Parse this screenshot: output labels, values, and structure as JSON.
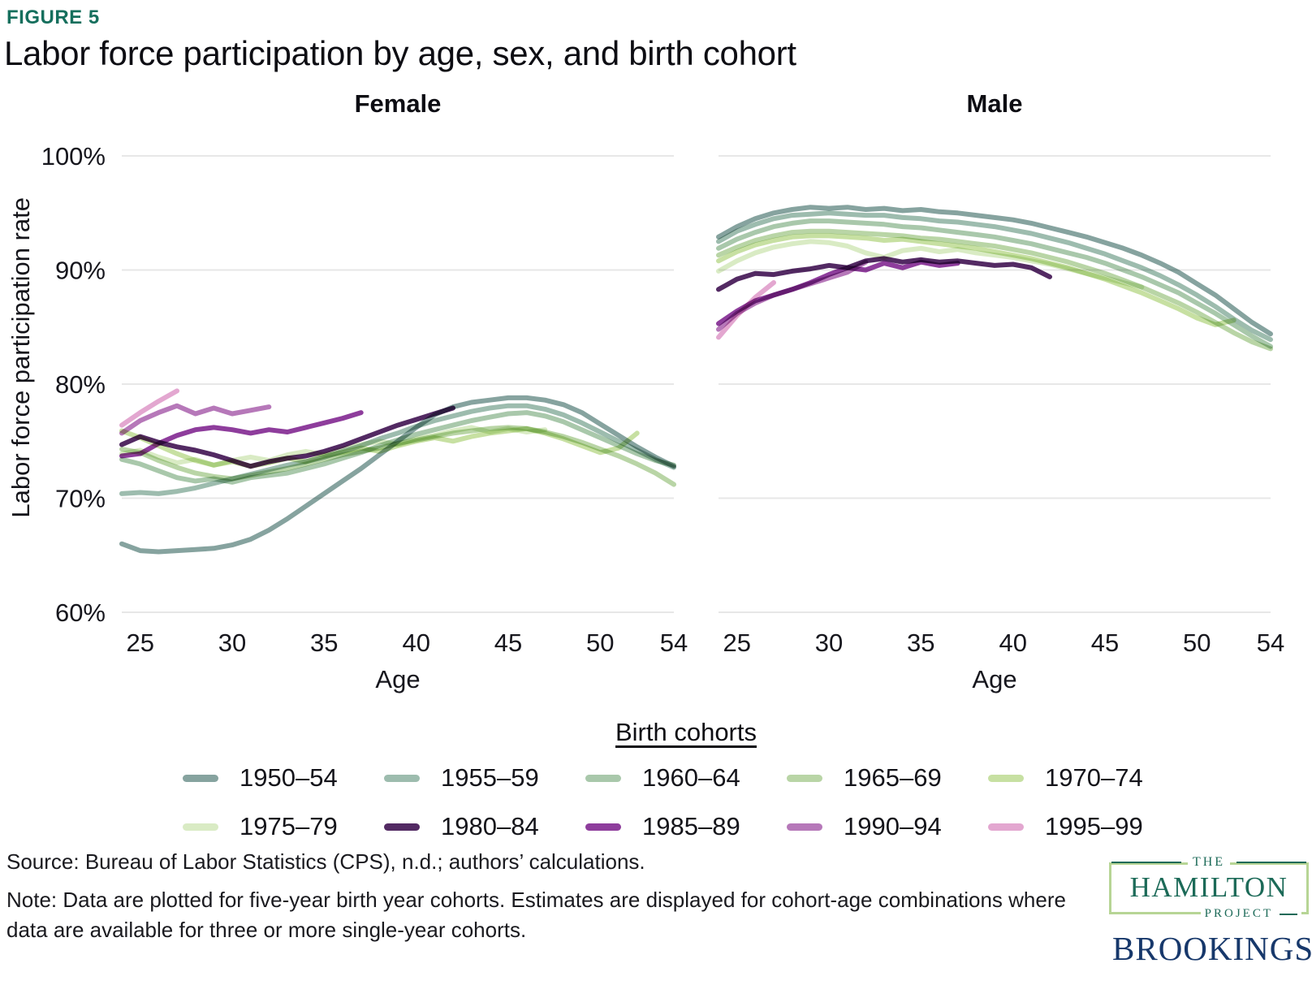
{
  "figure_label": "FIGURE 5",
  "title": "Labor force participation by age, sex, and birth cohort",
  "source": "Source: Bureau of Labor Statistics (CPS), n.d.; authors’ calculations.",
  "note": "Note: Data are plotted for five-year birth year cohorts. Estimates are displayed for cohort-age combinations where data are available for three or more single-year cohorts.",
  "legend": {
    "title": "Birth cohorts",
    "items": [
      {
        "label": "1950–54",
        "color": "#86a39f"
      },
      {
        "label": "1955–59",
        "color": "#9dbcae"
      },
      {
        "label": "1960–64",
        "color": "#a9c8ab"
      },
      {
        "label": "1965–69",
        "color": "#b9d5a6"
      },
      {
        "label": "1970–74",
        "color": "#c7e0a2"
      },
      {
        "label": "1975–79",
        "color": "#d9ebc4"
      },
      {
        "label": "1980–84",
        "color": "#532a63"
      },
      {
        "label": "1985–89",
        "color": "#8e3d9c"
      },
      {
        "label": "1990–94",
        "color": "#b678b9"
      },
      {
        "label": "1995–99",
        "color": "#e3a7d0"
      }
    ]
  },
  "logos": {
    "hamilton_the": "THE",
    "hamilton_name": "HAMILTON",
    "hamilton_project": "PROJECT",
    "brookings": "BROOKINGS"
  },
  "chart_data": [
    {
      "type": "line",
      "title": "Female",
      "xlabel": "Age",
      "ylabel": "Labor force participation rate",
      "xlim": [
        23.5,
        54.5
      ],
      "ylim": [
        58,
        101
      ],
      "x_ticks": [
        25,
        30,
        35,
        40,
        45,
        50,
        54
      ],
      "y_ticks": [
        100,
        90,
        80,
        70,
        60
      ],
      "grid": "horizontal",
      "legend_position": "bottom",
      "series": [
        {
          "name": "1950–54",
          "age_start": 24,
          "values": [
            66.0,
            65.4,
            65.3,
            65.4,
            65.5,
            65.6,
            65.9,
            66.4,
            67.2,
            68.2,
            69.3,
            70.4,
            71.5,
            72.6,
            73.8,
            75.0,
            76.2,
            77.3,
            78.0,
            78.4,
            78.6,
            78.8,
            78.8,
            78.6,
            78.2,
            77.5,
            76.5,
            75.5,
            74.5,
            73.6,
            72.8
          ]
        },
        {
          "name": "1955–59",
          "age_start": 24,
          "values": [
            70.4,
            70.5,
            70.4,
            70.6,
            70.9,
            71.3,
            71.7,
            72.1,
            72.5,
            72.9,
            73.2,
            73.6,
            74.1,
            74.6,
            75.2,
            75.7,
            76.3,
            76.8,
            77.2,
            77.6,
            77.9,
            78.1,
            78.1,
            77.8,
            77.3,
            76.6,
            75.8,
            75.0,
            74.2,
            73.4,
            72.7
          ]
        },
        {
          "name": "1960–64",
          "age_start": 24,
          "values": [
            73.4,
            73.0,
            72.4,
            71.8,
            71.5,
            71.7,
            71.4,
            71.8,
            72.0,
            72.2,
            72.6,
            73.0,
            73.5,
            74.0,
            74.6,
            75.1,
            75.6,
            76.0,
            76.4,
            76.8,
            77.1,
            77.4,
            77.5,
            77.2,
            76.7,
            76.0,
            75.3,
            74.6,
            73.9,
            73.3,
            72.9
          ]
        },
        {
          "name": "1965–69",
          "age_start": 24,
          "values": [
            74.3,
            74.0,
            73.3,
            72.7,
            72.2,
            71.9,
            71.7,
            72.0,
            72.3,
            72.6,
            73.0,
            73.4,
            73.8,
            74.1,
            74.4,
            74.8,
            75.1,
            75.4,
            75.7,
            75.9,
            76.1,
            76.2,
            76.1,
            75.8,
            75.4,
            74.9,
            74.3,
            73.7,
            73.0,
            72.2,
            71.2
          ]
        },
        {
          "name": "1970–74",
          "age_start": 24,
          "values": [
            75.9,
            75.3,
            74.6,
            73.9,
            73.3,
            72.9,
            73.2,
            72.8,
            73.1,
            73.5,
            73.2,
            73.7,
            74.0,
            74.4,
            74.1,
            74.6,
            75.0,
            75.3,
            75.0,
            75.4,
            75.7,
            75.9,
            76.1,
            75.7,
            75.2,
            74.6,
            74.0,
            74.4,
            75.7
          ]
        },
        {
          "name": "1975–79",
          "age_start": 24,
          "values": [
            73.9,
            74.2,
            73.6,
            73.1,
            73.4,
            72.9,
            73.3,
            73.6,
            73.3,
            73.8,
            74.1,
            73.8,
            74.3,
            74.7,
            75.0,
            74.7,
            75.2,
            75.5,
            75.9,
            76.2,
            75.8,
            76.1,
            75.8,
            76.0
          ]
        },
        {
          "name": "1980–84",
          "age_start": 24,
          "values": [
            74.7,
            75.4,
            74.9,
            74.5,
            74.2,
            73.8,
            73.3,
            72.8,
            73.2,
            73.5,
            73.7,
            74.1,
            74.6,
            75.2,
            75.8,
            76.4,
            76.9,
            77.4,
            77.9
          ]
        },
        {
          "name": "1985–89",
          "age_start": 24,
          "values": [
            73.7,
            73.9,
            74.8,
            75.5,
            76.0,
            76.2,
            76.0,
            75.7,
            76.0,
            75.8,
            76.2,
            76.6,
            77.0,
            77.5
          ]
        },
        {
          "name": "1990–94",
          "age_start": 24,
          "values": [
            75.7,
            76.8,
            77.5,
            78.1,
            77.4,
            77.9,
            77.4,
            77.7,
            78.0
          ]
        },
        {
          "name": "1995–99",
          "age_start": 24,
          "values": [
            76.4,
            77.5,
            78.5,
            79.4
          ]
        }
      ]
    },
    {
      "type": "line",
      "title": "Male",
      "xlabel": "Age",
      "ylabel": "Labor force participation rate",
      "xlim": [
        23.5,
        54.5
      ],
      "ylim": [
        58,
        101
      ],
      "x_ticks": [
        25,
        30,
        35,
        40,
        45,
        50,
        54
      ],
      "y_ticks": [
        100,
        90,
        80,
        70,
        60
      ],
      "grid": "horizontal",
      "legend_position": "bottom",
      "series": [
        {
          "name": "1950–54",
          "age_start": 24,
          "values": [
            92.9,
            93.8,
            94.5,
            95.0,
            95.3,
            95.5,
            95.4,
            95.5,
            95.3,
            95.4,
            95.2,
            95.3,
            95.1,
            95.0,
            94.8,
            94.6,
            94.4,
            94.1,
            93.7,
            93.3,
            92.9,
            92.4,
            91.9,
            91.3,
            90.6,
            89.8,
            88.8,
            87.8,
            86.6,
            85.4,
            84.4
          ]
        },
        {
          "name": "1955–59",
          "age_start": 24,
          "values": [
            92.5,
            93.4,
            94.0,
            94.5,
            94.8,
            94.9,
            95.0,
            94.9,
            94.8,
            94.8,
            94.6,
            94.5,
            94.3,
            94.2,
            94.0,
            93.8,
            93.5,
            93.2,
            92.8,
            92.4,
            91.9,
            91.4,
            90.8,
            90.2,
            89.5,
            88.7,
            87.8,
            86.8,
            85.7,
            84.7,
            83.9
          ]
        },
        {
          "name": "1960–64",
          "age_start": 24,
          "values": [
            91.9,
            92.7,
            93.3,
            93.8,
            94.1,
            94.3,
            94.3,
            94.2,
            94.1,
            94.0,
            93.8,
            93.7,
            93.5,
            93.3,
            93.1,
            92.9,
            92.6,
            92.3,
            91.9,
            91.5,
            91.1,
            90.6,
            90.0,
            89.4,
            88.7,
            88.0,
            87.1,
            86.2,
            85.2,
            84.2,
            83.3
          ]
        },
        {
          "name": "1965–69",
          "age_start": 24,
          "values": [
            91.3,
            92.0,
            92.6,
            93.0,
            93.3,
            93.4,
            93.4,
            93.3,
            93.2,
            93.1,
            93.0,
            92.8,
            92.7,
            92.5,
            92.3,
            92.1,
            91.8,
            91.5,
            91.1,
            90.7,
            90.2,
            89.7,
            89.1,
            88.5,
            87.8,
            87.1,
            86.3,
            85.4,
            84.5,
            83.7,
            83.1
          ]
        },
        {
          "name": "1970–74",
          "age_start": 24,
          "values": [
            90.8,
            91.6,
            92.2,
            92.6,
            92.9,
            93.0,
            93.0,
            92.9,
            92.8,
            92.6,
            92.7,
            92.5,
            92.3,
            92.1,
            91.9,
            91.6,
            91.3,
            91.0,
            90.6,
            90.2,
            89.7,
            89.2,
            88.6,
            88.0,
            87.3,
            86.6,
            85.8,
            85.2,
            85.6
          ]
        },
        {
          "name": "1975–79",
          "age_start": 24,
          "values": [
            89.9,
            90.8,
            91.5,
            92.0,
            92.3,
            92.5,
            92.4,
            92.1,
            91.5,
            91.1,
            91.7,
            91.9,
            91.6,
            91.8,
            91.5,
            91.3,
            91.1,
            90.8,
            90.5,
            90.1,
            89.7,
            89.3,
            88.9,
            88.5
          ]
        },
        {
          "name": "1980–84",
          "age_start": 24,
          "values": [
            88.3,
            89.2,
            89.7,
            89.6,
            89.9,
            90.1,
            90.4,
            90.2,
            90.8,
            91.0,
            90.7,
            90.9,
            90.7,
            90.8,
            90.6,
            90.4,
            90.5,
            90.2,
            89.4
          ]
        },
        {
          "name": "1985–89",
          "age_start": 24,
          "values": [
            85.3,
            86.4,
            87.3,
            87.8,
            88.3,
            88.9,
            89.6,
            90.2,
            90.0,
            90.6,
            90.2,
            90.7,
            90.4,
            90.6
          ]
        },
        {
          "name": "1990–94",
          "age_start": 24,
          "values": [
            84.8,
            86.2,
            87.1,
            87.8,
            88.3,
            88.8,
            89.3,
            89.8,
            90.7
          ]
        },
        {
          "name": "1995–99",
          "age_start": 24,
          "values": [
            84.1,
            86.0,
            87.6,
            88.9
          ]
        }
      ]
    }
  ]
}
